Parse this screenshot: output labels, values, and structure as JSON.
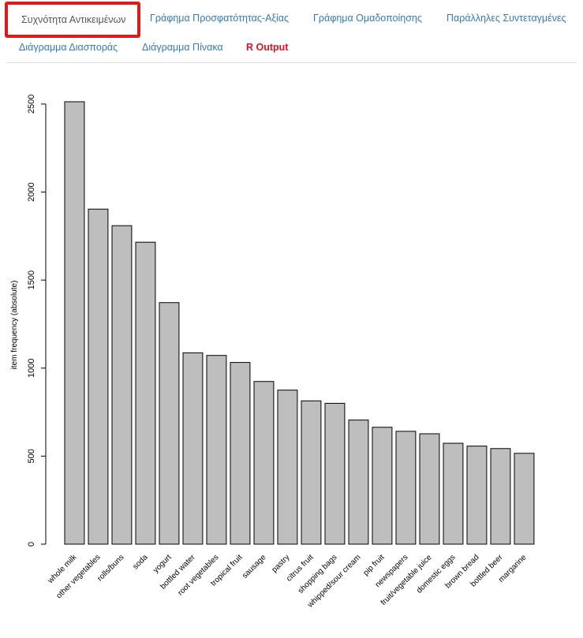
{
  "tabs": [
    {
      "label": "Συχνότητα Αντικειμένων",
      "active": true
    },
    {
      "label": "Γράφημα Προσφατότητας-Αξίας"
    },
    {
      "label": "Γράφημα Ομαδοποίησης"
    },
    {
      "label": "Παράλληλες Συντεταγμένες"
    },
    {
      "label": "Διάγραμμα Διασποράς"
    },
    {
      "label": "Διάγραμμα Πίνακα"
    },
    {
      "label": "R Output"
    }
  ],
  "colors": {
    "active_outline": "#e01a1a",
    "link": "#337ab7",
    "r_output": "#e8101e",
    "bar_fill": "#bebebe",
    "bar_stroke": "#000000"
  },
  "chart_data": {
    "type": "bar",
    "title": "",
    "xlabel": "",
    "ylabel": "item frequency (absolute)",
    "ylim": [
      0,
      2513
    ],
    "yticks": [
      0,
      500,
      1000,
      1500,
      2000,
      2500
    ],
    "grid": false,
    "categories": [
      "whole milk",
      "other vegetables",
      "rolls/buns",
      "soda",
      "yogurt",
      "bottled water",
      "root vegetables",
      "tropical fruit",
      "sausage",
      "pastry",
      "citrus fruit",
      "shopping bags",
      "whipped/sour cream",
      "pip fruit",
      "newspapers",
      "fruit/vegetable juice",
      "domestic eggs",
      "brown bread",
      "bottled beer",
      "margarine"
    ],
    "values": [
      2513,
      1903,
      1809,
      1715,
      1372,
      1087,
      1072,
      1032,
      924,
      875,
      814,
      800,
      705,
      664,
      641,
      627,
      573,
      557,
      543,
      516
    ]
  }
}
